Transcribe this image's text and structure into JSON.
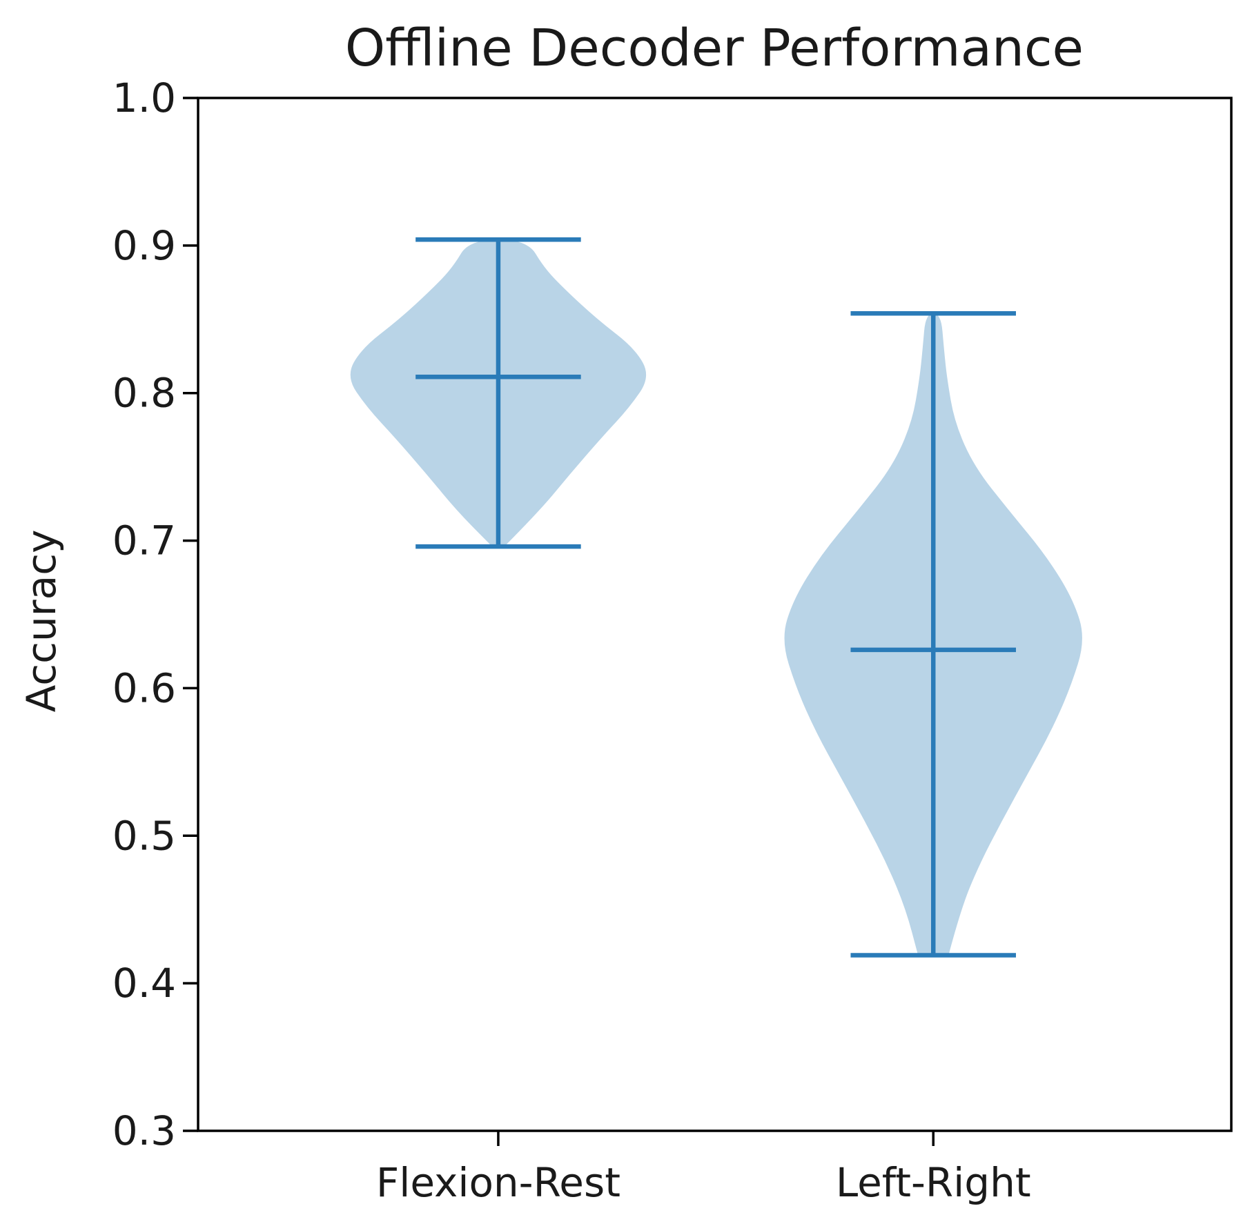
{
  "chart_data": {
    "type": "violin",
    "title": "Offline Decoder Performance",
    "xlabel": "",
    "ylabel": "Accuracy",
    "ylim": [
      0.3,
      1.0
    ],
    "yticks": [
      "0.3",
      "0.4",
      "0.5",
      "0.6",
      "0.7",
      "0.8",
      "0.9",
      "1.0"
    ],
    "categories": [
      "Flexion-Rest",
      "Left-Right"
    ],
    "grid": false,
    "colors": {
      "body": "#b9d4e7",
      "lines": "#2a7bb8",
      "axis": "#000000"
    },
    "violins": [
      {
        "category": "Flexion-Rest",
        "min": 0.696,
        "mean": 0.811,
        "max": 0.904,
        "density": [
          [
            0.696,
            0.04
          ],
          [
            0.72,
            0.27
          ],
          [
            0.745,
            0.47
          ],
          [
            0.77,
            0.68
          ],
          [
            0.79,
            0.86
          ],
          [
            0.811,
            1.0
          ],
          [
            0.83,
            0.9
          ],
          [
            0.85,
            0.65
          ],
          [
            0.87,
            0.44
          ],
          [
            0.885,
            0.3
          ],
          [
            0.904,
            0.19
          ]
        ]
      },
      {
        "category": "Left-Right",
        "min": 0.419,
        "mean": 0.626,
        "max": 0.854,
        "density": [
          [
            0.419,
            0.1
          ],
          [
            0.45,
            0.18
          ],
          [
            0.48,
            0.3
          ],
          [
            0.51,
            0.45
          ],
          [
            0.54,
            0.61
          ],
          [
            0.57,
            0.77
          ],
          [
            0.6,
            0.9
          ],
          [
            0.633,
            1.0
          ],
          [
            0.66,
            0.92
          ],
          [
            0.69,
            0.74
          ],
          [
            0.72,
            0.5
          ],
          [
            0.75,
            0.27
          ],
          [
            0.78,
            0.14
          ],
          [
            0.81,
            0.09
          ],
          [
            0.83,
            0.07
          ],
          [
            0.854,
            0.05
          ]
        ]
      }
    ]
  }
}
